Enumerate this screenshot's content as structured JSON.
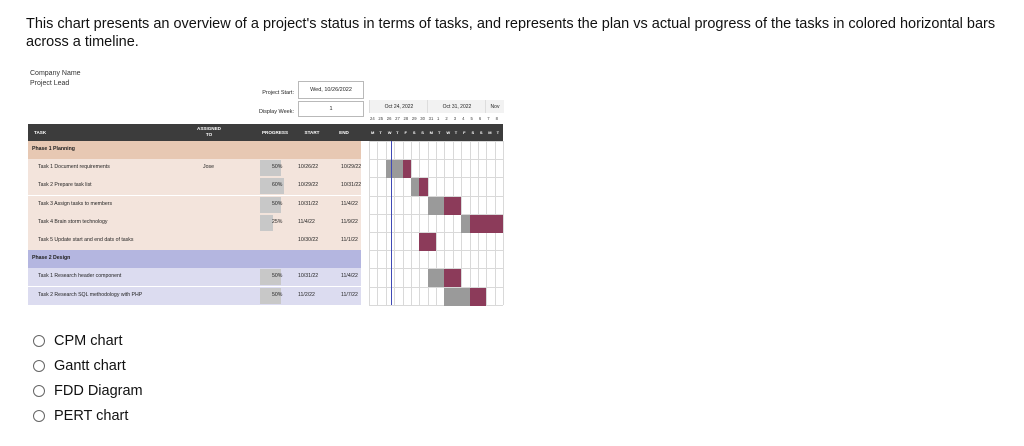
{
  "question": "This chart presents an overview of a project's status in terms of tasks, and represents the plan vs actual progress of the tasks in colored horizontal bars across a timeline.",
  "figure": {
    "company_name": "Company Name",
    "project_lead": "Project Lead",
    "project_start_label": "Project Start:",
    "project_start_value": "Wed, 10/26/2022",
    "display_week_label": "Display Week:",
    "display_week_value": "1",
    "weeks": [
      "Oct 24, 2022",
      "Oct 31, 2022",
      "Nov"
    ],
    "day_numbers": [
      "24",
      "25",
      "26",
      "27",
      "28",
      "29",
      "30",
      "31",
      "1",
      "2",
      "3",
      "4",
      "5",
      "6",
      "7",
      "8"
    ],
    "day_letters": [
      "M",
      "T",
      "W",
      "T",
      "F",
      "S",
      "S",
      "M",
      "T",
      "W",
      "T",
      "F",
      "S",
      "S",
      "M",
      "T"
    ],
    "columns": {
      "task": "TASK",
      "assigned": "ASSIGNED TO",
      "progress": "PROGRESS",
      "start": "START",
      "end": "END"
    },
    "rows": [
      {
        "kind": "phase",
        "task": "Phase 1 Planning",
        "assigned": "",
        "progress": "",
        "start": "",
        "end": ""
      },
      {
        "kind": "task",
        "task": "Task 1 Document requirements",
        "assigned": "Jose",
        "progress": "50%",
        "start": "10/26/22",
        "end": "10/29/22"
      },
      {
        "kind": "task",
        "task": "Task 2 Prepare task list",
        "assigned": "",
        "progress": "60%",
        "start": "10/29/22",
        "end": "10/31/22"
      },
      {
        "kind": "task",
        "task": "Task 3 Assign tasks to members",
        "assigned": "",
        "progress": "50%",
        "start": "10/31/22",
        "end": "11/4/22"
      },
      {
        "kind": "task",
        "task": "Task 4 Brain storm technology",
        "assigned": "",
        "progress": "25%",
        "start": "11/4/22",
        "end": "11/9/22"
      },
      {
        "kind": "task",
        "task": "Task 5 Update start and end dats of tasks",
        "assigned": "",
        "progress": "",
        "start": "10/30/22",
        "end": "11/1/22"
      },
      {
        "kind": "phase",
        "task": "Phase 2 Design",
        "assigned": "",
        "progress": "",
        "start": "",
        "end": ""
      },
      {
        "kind": "task",
        "task": "Task 1 Research header component",
        "assigned": "",
        "progress": "50%",
        "start": "10/31/22",
        "end": "11/4/22"
      },
      {
        "kind": "task",
        "task": "Task 2 Research SQL methodology with PHP",
        "assigned": "",
        "progress": "50%",
        "start": "11/2/22",
        "end": "11/7/22"
      }
    ],
    "colors": {
      "phase1_bg": "#e7c8b3",
      "phase1_rows": "#f3e4dc",
      "phase2_bg": "#b4b6e0",
      "phase2_rows": "#dcdcf0",
      "header": "#3c3c3c",
      "done_bar": "#9a9a9a",
      "remaining_bar": "#8c3b5a",
      "today_line": "#3f49b5"
    }
  },
  "options": [
    {
      "label": "CPM chart"
    },
    {
      "label": "Gantt chart"
    },
    {
      "label": "FDD Diagram"
    },
    {
      "label": "PERT chart"
    }
  ]
}
